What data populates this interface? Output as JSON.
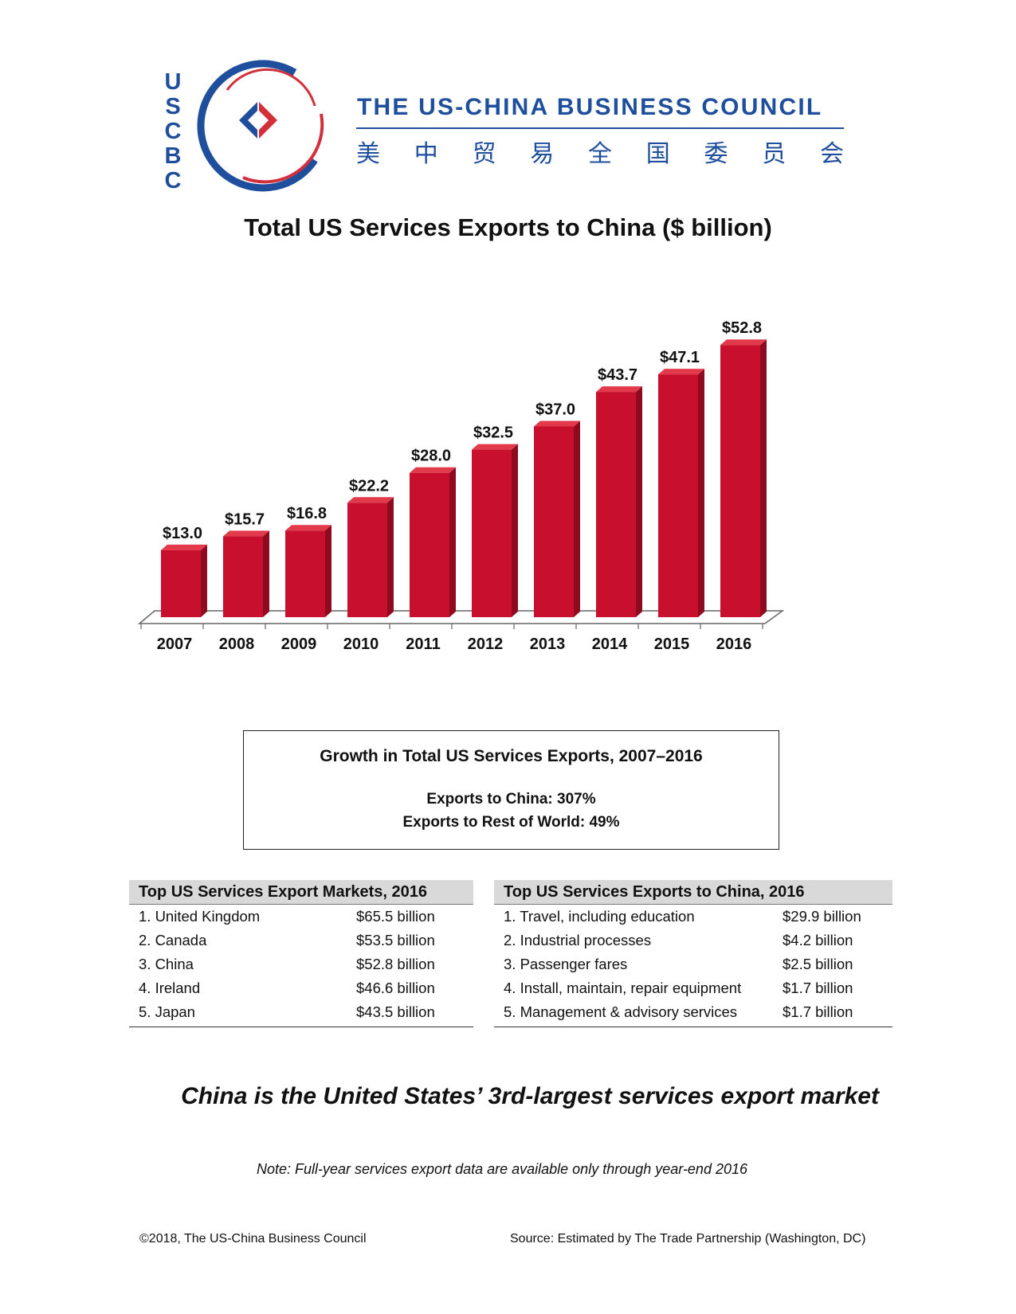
{
  "logo": {
    "letters": [
      "U",
      "S",
      "C",
      "B",
      "C"
    ],
    "org_name": "THE US-CHINA BUSINESS COUNCIL",
    "org_name_cn": [
      "美",
      "中",
      "贸",
      "易",
      "全",
      "国",
      "委",
      "员",
      "会"
    ]
  },
  "colors": {
    "brand_blue": "#1f4e9c",
    "brand_red": "#d32f3a",
    "bar_front": "#c8102e",
    "bar_top": "#e23a4a",
    "bar_side": "#8e0b1f"
  },
  "chart_data": {
    "type": "bar",
    "title": "Total US Services Exports to China ($ billion)",
    "categories": [
      "2007",
      "2008",
      "2009",
      "2010",
      "2011",
      "2012",
      "2013",
      "2014",
      "2015",
      "2016"
    ],
    "values": [
      13.0,
      15.7,
      16.8,
      22.2,
      28.0,
      32.5,
      37.0,
      43.7,
      47.1,
      52.8
    ],
    "data_labels": [
      "$13.0",
      "$15.7",
      "$16.8",
      "$22.2",
      "$28.0",
      "$32.5",
      "$37.0",
      "$43.7",
      "$47.1",
      "$52.8"
    ],
    "xlabel": "",
    "ylabel": "",
    "ylim": [
      0,
      55
    ],
    "grid": false,
    "legend": "none"
  },
  "growth": {
    "title": "Growth in Total US Services Exports, 2007–2016",
    "china": "Exports to China: 307%",
    "rest_of_world": "Exports to Rest of World: 49%"
  },
  "markets_table": {
    "title": "Top US Services Export Markets, 2016",
    "rows": [
      {
        "name": "1. United Kingdom",
        "value": "$65.5 billion"
      },
      {
        "name": "2. Canada",
        "value": "$53.5 billion"
      },
      {
        "name": "3. China",
        "value": "$52.8 billion"
      },
      {
        "name": "4. Ireland",
        "value": "$46.6 billion"
      },
      {
        "name": "5. Japan",
        "value": "$43.5 billion"
      }
    ]
  },
  "exports_table": {
    "title": "Top US Services Exports to China, 2016",
    "rows": [
      {
        "name": "1. Travel, including education",
        "value": "$29.9 billion"
      },
      {
        "name": "2. Industrial processes",
        "value": "$4.2 billion"
      },
      {
        "name": "3. Passenger fares",
        "value": "$2.5 billion"
      },
      {
        "name": "4. Install, maintain, repair equipment",
        "value": "$1.7 billion"
      },
      {
        "name": "5. Management & advisory services",
        "value": "$1.7 billion"
      }
    ]
  },
  "headline": "China is the United States’ 3rd-largest services export market",
  "note": "Note: Full-year services export data are available only through year-end 2016",
  "copyright": "©2018, The US-China Business Council",
  "source": "Source: Estimated by The Trade Partnership (Washington, DC)"
}
